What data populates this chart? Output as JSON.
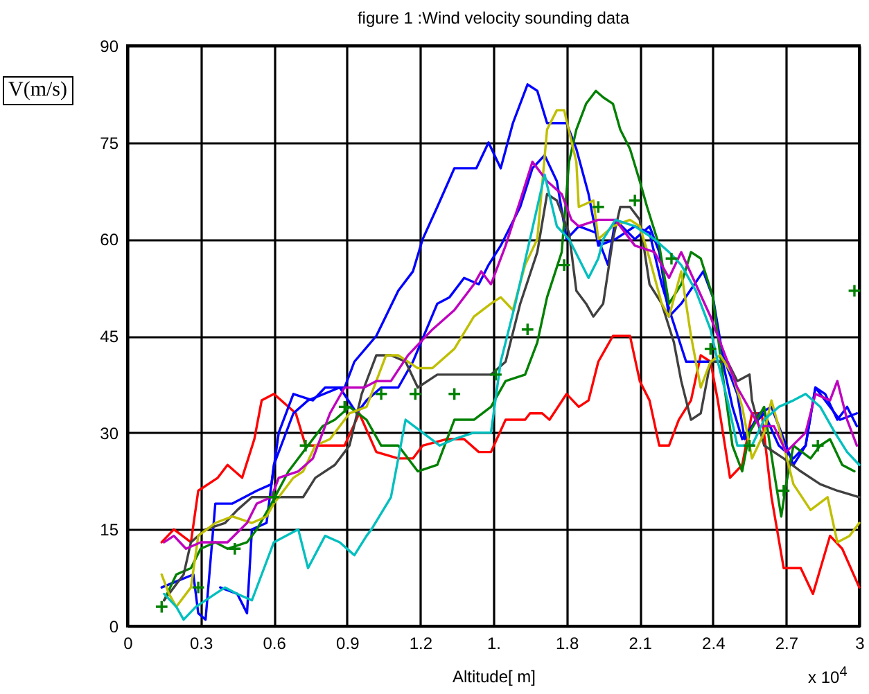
{
  "chart_data": {
    "type": "line",
    "title": "figure  1 :Wind velocity sounding data",
    "xlabel": "Altitude[ m]",
    "ylabel": "V(m/s)",
    "annotations": [
      "x 10$^{4}$"
    ],
    "xlim": [
      0,
      3
    ],
    "xticks": [
      0,
      0.3,
      0.6,
      0.9,
      1.2,
      {
        "value": 1.5,
        "label": "1."
      },
      1.8,
      2.1,
      2.4,
      2.7,
      3
    ],
    "ylim": [
      0,
      90
    ],
    "yticks": [
      0,
      15,
      30,
      45,
      60,
      75,
      90
    ],
    "grid": true,
    "series": [
      {
        "color": "#ff0000",
        "x": [
          0.14,
          0.19,
          0.26,
          0.29,
          0.37,
          0.41,
          0.47,
          0.52,
          0.55,
          0.6,
          0.69,
          0.73,
          0.77,
          0.89,
          0.95,
          1.02,
          1.11,
          1.17,
          1.21,
          1.31,
          1.38,
          1.44,
          1.49,
          1.55,
          1.63,
          1.65,
          1.7,
          1.73,
          1.8,
          1.85,
          1.89,
          1.93,
          1.99,
          2.06,
          2.1,
          2.14,
          2.18,
          2.22,
          2.26,
          2.31,
          2.35,
          2.39,
          2.42,
          2.47,
          2.52,
          2.56,
          2.6,
          2.64,
          2.69,
          2.76,
          2.81,
          2.88,
          2.93,
          3.0
        ],
        "values": [
          13,
          15,
          13,
          21,
          23,
          25,
          23,
          29,
          35,
          36,
          33,
          28,
          28,
          28,
          33,
          27,
          26,
          26,
          28,
          29,
          29,
          27,
          27,
          32,
          32,
          33,
          33,
          32,
          36,
          34,
          35,
          41,
          45,
          45,
          38,
          35,
          28,
          28,
          32,
          35,
          42,
          41,
          35,
          23,
          25,
          33,
          33,
          20,
          9,
          9,
          5,
          14,
          12,
          6
        ]
      },
      {
        "color": "#0000ff",
        "x": [
          0.14,
          0.27,
          0.29,
          0.32,
          0.36,
          0.43,
          0.53,
          0.59,
          0.62,
          0.68,
          0.76,
          0.81,
          0.89,
          0.93,
          1.02,
          1.11,
          1.17,
          1.21,
          1.27,
          1.34,
          1.43,
          1.48,
          1.53,
          1.58,
          1.64,
          1.68,
          1.72,
          1.76,
          1.8,
          1.84,
          1.89,
          1.93,
          2.0,
          2.08,
          2.14,
          2.19,
          2.23,
          2.29,
          2.36,
          2.44,
          2.48,
          2.52,
          2.56,
          2.61,
          2.67,
          2.73,
          2.78,
          2.82,
          2.88,
          2.92,
          2.99
        ],
        "values": [
          6,
          8,
          2,
          1,
          19,
          19,
          21,
          22,
          30,
          36,
          35,
          37,
          37,
          41,
          45,
          52,
          55,
          60,
          65,
          71,
          71,
          75,
          71,
          78,
          84,
          83,
          78,
          78,
          78,
          74,
          67,
          59,
          60,
          62,
          61,
          53,
          48,
          41,
          41,
          41,
          34,
          29,
          31,
          33,
          28,
          26,
          28,
          37,
          34,
          32,
          33
        ]
      },
      {
        "color": "#0000ff",
        "x": [
          0.38,
          0.45,
          0.49,
          0.51,
          0.57,
          0.6,
          0.68,
          0.74,
          0.87,
          0.94,
          0.98,
          1.04,
          1.11,
          1.17,
          1.27,
          1.32,
          1.38,
          1.44,
          1.48,
          1.53,
          1.61,
          1.66,
          1.71,
          1.76,
          1.8,
          1.85,
          1.92,
          1.97,
          2.0,
          2.08,
          2.14,
          2.18,
          2.22,
          2.27,
          2.36,
          2.4,
          2.44,
          2.5,
          2.53,
          2.59,
          2.64,
          2.73,
          2.78,
          2.82,
          2.86,
          2.91,
          2.95,
          2.99
        ],
        "values": [
          6,
          5,
          2,
          15,
          16,
          25,
          33,
          35,
          37,
          33,
          35,
          37,
          37,
          41,
          50,
          51,
          54,
          53,
          56,
          59,
          65,
          71,
          73,
          69,
          60,
          62,
          61,
          56,
          63,
          60,
          62,
          58,
          48,
          50,
          55,
          51,
          42,
          36,
          29,
          33,
          34,
          25,
          28,
          37,
          36,
          32,
          34,
          31
        ]
      },
      {
        "color": "#008000",
        "x": [
          0.15,
          0.2,
          0.26,
          0.3,
          0.36,
          0.41,
          0.49,
          0.53,
          0.59,
          0.66,
          0.74,
          0.8,
          0.85,
          0.91,
          0.98,
          1.04,
          1.11,
          1.19,
          1.27,
          1.34,
          1.42,
          1.49,
          1.55,
          1.63,
          1.68,
          1.72,
          1.78,
          1.81,
          1.84,
          1.88,
          1.92,
          1.95,
          1.99,
          2.02,
          2.06,
          2.1,
          2.13,
          2.18,
          2.22,
          2.27,
          2.31,
          2.35,
          2.4,
          2.44,
          2.48,
          2.52,
          2.55,
          2.61,
          2.65,
          2.68,
          2.7,
          2.73,
          2.8,
          2.84,
          2.88,
          2.93,
          2.98
        ],
        "values": [
          4,
          8,
          9,
          12,
          13,
          12,
          13,
          15,
          19,
          24,
          28,
          31,
          32,
          34,
          32,
          28,
          28,
          24,
          25,
          32,
          32,
          34,
          38,
          39,
          44,
          51,
          58,
          72,
          77,
          81,
          83,
          82,
          81,
          77,
          74,
          69,
          65,
          59,
          50,
          53,
          58,
          57,
          51,
          39,
          28,
          24,
          30,
          34,
          24,
          17,
          22,
          28,
          26,
          28,
          29,
          25,
          24
        ]
      },
      {
        "color": "#404040",
        "x": [
          0.15,
          0.23,
          0.26,
          0.32,
          0.4,
          0.45,
          0.51,
          0.59,
          0.66,
          0.72,
          0.77,
          0.85,
          0.91,
          0.96,
          1.02,
          1.08,
          1.14,
          1.19,
          1.27,
          1.38,
          1.49,
          1.55,
          1.61,
          1.68,
          1.72,
          1.76,
          1.81,
          1.84,
          1.88,
          1.91,
          1.95,
          1.99,
          2.02,
          2.06,
          2.1,
          2.14,
          2.19,
          2.24,
          2.27,
          2.31,
          2.35,
          2.39,
          2.46,
          2.5,
          2.55,
          2.56,
          2.61,
          2.69,
          2.76,
          2.84,
          2.91,
          3.0
        ],
        "values": [
          4,
          8,
          13,
          15,
          16,
          18,
          20,
          20,
          20,
          20,
          23,
          25,
          28,
          36,
          42,
          42,
          41,
          37,
          39,
          39,
          39,
          41,
          50,
          58,
          67,
          66,
          61,
          52,
          50,
          48,
          50,
          60,
          65,
          65,
          63,
          53,
          50,
          44,
          38,
          32,
          33,
          41,
          41,
          38,
          39,
          35,
          28,
          26,
          24,
          22,
          21,
          20
        ]
      },
      {
        "color": "#bfbf00",
        "x": [
          0.14,
          0.17,
          0.2,
          0.26,
          0.29,
          0.36,
          0.43,
          0.51,
          0.57,
          0.6,
          0.68,
          0.72,
          0.77,
          0.83,
          0.91,
          0.98,
          1.06,
          1.11,
          1.19,
          1.25,
          1.34,
          1.42,
          1.49,
          1.53,
          1.58,
          1.63,
          1.68,
          1.72,
          1.76,
          1.79,
          1.84,
          1.85,
          1.91,
          1.93,
          1.99,
          2.06,
          2.1,
          2.14,
          2.19,
          2.22,
          2.27,
          2.31,
          2.35,
          2.39,
          2.43,
          2.48,
          2.52,
          2.56,
          2.61,
          2.64,
          2.69,
          2.73,
          2.8,
          2.87,
          2.91,
          2.96,
          3.0
        ],
        "values": [
          8,
          5,
          3,
          6,
          14,
          16,
          17,
          16,
          17,
          19,
          23,
          24,
          28,
          29,
          33,
          34,
          42,
          42,
          40,
          40,
          43,
          48,
          50,
          51,
          49,
          56,
          60,
          77,
          80,
          80,
          72,
          65,
          66,
          60,
          62,
          63,
          62,
          57,
          50,
          48,
          55,
          45,
          37,
          41,
          42,
          39,
          34,
          26,
          30,
          35,
          28,
          22,
          18,
          20,
          13,
          14,
          16
        ]
      },
      {
        "color": "#bf00bf",
        "x": [
          0.15,
          0.19,
          0.24,
          0.3,
          0.36,
          0.41,
          0.49,
          0.53,
          0.59,
          0.62,
          0.7,
          0.76,
          0.83,
          0.89,
          0.97,
          1.02,
          1.08,
          1.15,
          1.25,
          1.34,
          1.42,
          1.45,
          1.49,
          1.55,
          1.61,
          1.66,
          1.72,
          1.78,
          1.82,
          1.85,
          1.93,
          2.0,
          2.08,
          2.16,
          2.22,
          2.27,
          2.33,
          2.39,
          2.44,
          2.5,
          2.56,
          2.59,
          2.65,
          2.7,
          2.78,
          2.82,
          2.88,
          2.91,
          2.95,
          2.99
        ],
        "values": [
          13,
          14,
          12,
          13,
          13,
          13,
          16,
          19,
          20,
          23,
          24,
          26,
          33,
          37,
          37,
          38,
          38,
          42,
          46,
          49,
          53,
          55,
          53,
          59,
          66,
          72,
          69,
          67,
          63,
          62,
          63,
          63,
          59,
          58,
          54,
          58,
          53,
          48,
          43,
          37,
          33,
          31,
          31,
          27,
          30,
          36,
          35,
          38,
          32,
          28
        ]
      },
      {
        "color": "#00bfbf",
        "x": [
          0.15,
          0.2,
          0.23,
          0.28,
          0.36,
          0.4,
          0.45,
          0.51,
          0.55,
          0.6,
          0.7,
          0.74,
          0.81,
          0.87,
          0.93,
          0.98,
          1.0,
          1.08,
          1.14,
          1.21,
          1.28,
          1.34,
          1.42,
          1.49,
          1.53,
          1.59,
          1.65,
          1.71,
          1.76,
          1.81,
          1.85,
          1.89,
          1.93,
          1.95,
          2.0,
          2.08,
          2.16,
          2.22,
          2.27,
          2.33,
          2.39,
          2.42,
          2.46,
          2.5,
          2.56,
          2.61,
          2.67,
          2.73,
          2.78,
          2.84,
          2.9,
          2.95,
          3.0
        ],
        "values": [
          5,
          3,
          1,
          3,
          5,
          6,
          5,
          4,
          8,
          13,
          15,
          9,
          14,
          13,
          11,
          14,
          15,
          20,
          32,
          30,
          28,
          29,
          30,
          30,
          41,
          50,
          60,
          70,
          62,
          60,
          57,
          54,
          57,
          60,
          63,
          62,
          60,
          58,
          56,
          52,
          46,
          41,
          35,
          28,
          28,
          32,
          34,
          35,
          36,
          34,
          30,
          27,
          25
        ]
      },
      {
        "type": "scatter",
        "marker": "cross",
        "color": "#008000",
        "x": [
          0.14,
          0.29,
          0.44,
          0.6,
          0.73,
          0.89,
          1.04,
          1.18,
          1.34,
          1.51,
          1.64,
          1.79,
          1.93,
          2.08,
          2.23,
          2.39,
          2.55,
          2.69,
          2.83,
          2.98
        ],
        "values": [
          3,
          6,
          12,
          20,
          28,
          34,
          36,
          36,
          36,
          39,
          46,
          56,
          65,
          66,
          57,
          43,
          28,
          21,
          28,
          52
        ]
      }
    ]
  }
}
